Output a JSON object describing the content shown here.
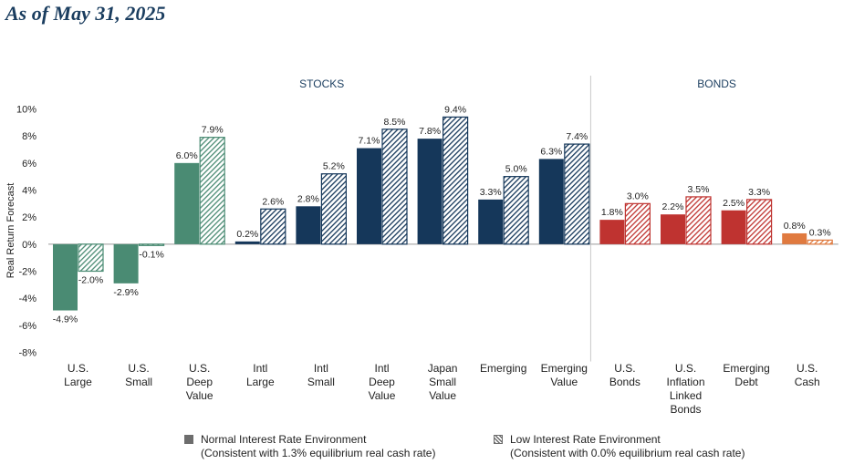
{
  "subtitle": "As of May 31, 2025",
  "chart_data": {
    "type": "bar",
    "ylabel": "Real Return Forecast",
    "ylim": [
      -8,
      10
    ],
    "yticks": [
      -8,
      -6,
      -4,
      -2,
      0,
      2,
      4,
      6,
      8,
      10
    ],
    "ytick_labels": [
      "-8%",
      "-6%",
      "-4%",
      "-2%",
      "0%",
      "2%",
      "4%",
      "6%",
      "8%",
      "10%"
    ],
    "groups": [
      {
        "label": "STOCKS",
        "categories": 9
      },
      {
        "label": "BONDS",
        "categories": 4
      }
    ],
    "categories": [
      [
        "U.S.",
        "Large"
      ],
      [
        "U.S.",
        "Small"
      ],
      [
        "U.S.",
        "Deep",
        "Value"
      ],
      [
        "Intl",
        "Large"
      ],
      [
        "Intl",
        "Small"
      ],
      [
        "Intl",
        "Deep",
        "Value"
      ],
      [
        "Japan",
        "Small",
        "Value"
      ],
      [
        "Emerging"
      ],
      [
        "Emerging",
        "Value"
      ],
      [
        "U.S.",
        "Bonds"
      ],
      [
        "U.S.",
        "Inflation",
        "Linked",
        "Bonds"
      ],
      [
        "Emerging",
        "Debt"
      ],
      [
        "U.S.",
        "Cash"
      ]
    ],
    "colors": [
      "#4a8b73",
      "#4a8b73",
      "#4a8b73",
      "#15375a",
      "#15375a",
      "#15375a",
      "#15375a",
      "#15375a",
      "#15375a",
      "#bf3330",
      "#bf3330",
      "#bf3330",
      "#e07a3f"
    ],
    "series": [
      {
        "values": [
          -4.9,
          -2.9,
          6.0,
          0.2,
          2.8,
          7.1,
          7.8,
          3.3,
          6.3,
          1.8,
          2.2,
          2.5,
          0.8
        ],
        "labels": [
          "-4.9%",
          "-2.9%",
          "6.0%",
          "0.2%",
          "2.8%",
          "7.1%",
          "7.8%",
          "3.3%",
          "6.3%",
          "1.8%",
          "2.2%",
          "2.5%",
          "0.8%"
        ]
      },
      {
        "values": [
          -2.0,
          -0.1,
          7.9,
          2.6,
          5.2,
          8.5,
          9.4,
          5.0,
          7.4,
          3.0,
          3.5,
          3.3,
          0.3
        ],
        "labels": [
          "-2.0%",
          "-0.1%",
          "7.9%",
          "2.6%",
          "5.2%",
          "8.5%",
          "9.4%",
          "5.0%",
          "7.4%",
          "3.0%",
          "3.5%",
          "3.3%",
          "0.3%"
        ]
      }
    ],
    "legend": [
      {
        "line1": "Normal Interest Rate Environment",
        "line2": "(Consistent with 1.3% equilibrium real cash rate)",
        "swatch": "solid",
        "color": "#6d6d6d"
      },
      {
        "line1": "Low Interest Rate Environment",
        "line2": "(Consistent with 0.0% equilibrium real cash rate)",
        "swatch": "hatched",
        "color": "#6d6d6d"
      }
    ],
    "legend_position": "bottom",
    "grid": false
  }
}
